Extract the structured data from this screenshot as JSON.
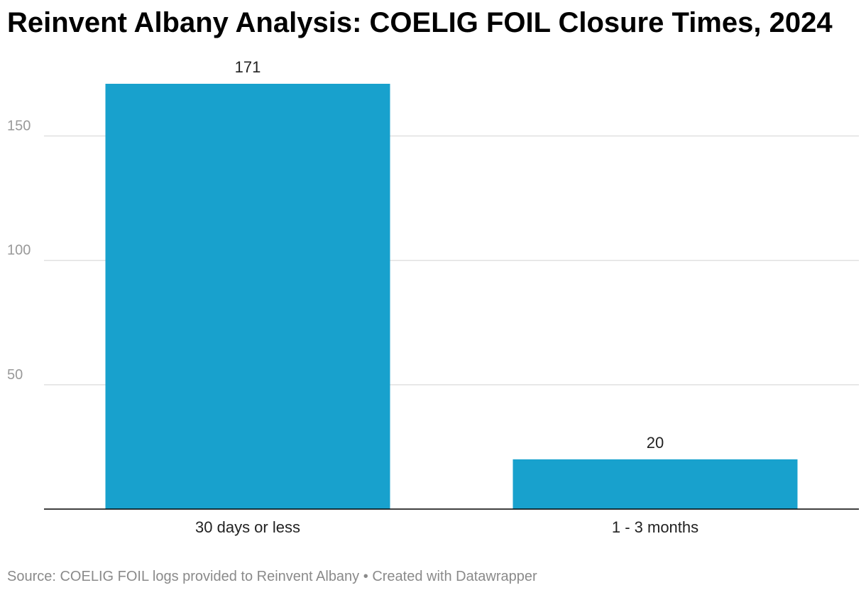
{
  "chart_data": {
    "type": "bar",
    "title": "Reinvent Albany Analysis: COELIG FOIL Closure Times, 2024",
    "categories": [
      "30 days or less",
      "1 - 3 months"
    ],
    "values": [
      171,
      20
    ],
    "value_labels": [
      "171",
      "20"
    ],
    "xlabel": "",
    "ylabel": "",
    "ylim": [
      0,
      171
    ],
    "yticks": [
      50,
      100,
      150
    ],
    "grid": true,
    "bar_color": "#18a1cd"
  },
  "footer": {
    "source": "Source: COELIG FOIL logs provided to Reinvent Albany",
    "separator": "•",
    "credit": "Created with Datawrapper"
  }
}
